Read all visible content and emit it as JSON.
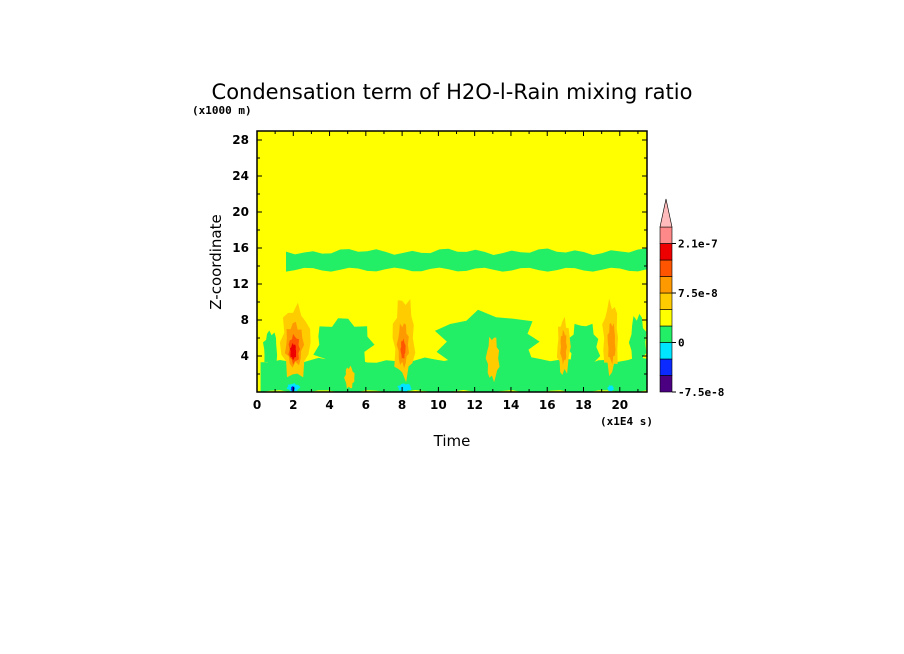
{
  "chart_data": {
    "type": "heatmap",
    "title": "Condensation term of H2O-l-Rain mixing ratio",
    "xlabel": "Time",
    "ylabel": "Z-coordinate",
    "x_unit": "(x1E4 s)",
    "y_unit": "(x1000 m)",
    "xlim": [
      0,
      21.5
    ],
    "ylim": [
      0,
      29
    ],
    "x_ticks": [
      0,
      2,
      4,
      6,
      8,
      10,
      12,
      14,
      16,
      18,
      20
    ],
    "y_ticks": [
      4,
      8,
      12,
      16,
      20,
      24,
      28
    ],
    "colorbar": {
      "levels": [
        {
          "color": "#4b0082"
        },
        {
          "color": "#0a2aff"
        },
        {
          "color": "#00e5ff"
        },
        {
          "color": "#22ee66"
        },
        {
          "color": "#ffff00"
        },
        {
          "color": "#ffcc00"
        },
        {
          "color": "#ff9900"
        },
        {
          "color": "#ff5500"
        },
        {
          "color": "#ee0000"
        },
        {
          "color": "#ff8888"
        },
        {
          "color": "#ffbbbb"
        }
      ],
      "tick_labels": [
        {
          "text": "2.1e-7",
          "value": 2.1e-07
        },
        {
          "text": "7.5e-8",
          "value": 7.5e-08
        },
        {
          "text": "0",
          "value": 0
        },
        {
          "text": "-7.5e-8",
          "value": -7.5e-08
        }
      ]
    },
    "background_value_color": "#ffff00",
    "regions": [
      {
        "kind": "band",
        "color": "#22ee66",
        "t_start": 1.6,
        "t_end": 21.5,
        "z_low": 13.6,
        "z_high": 15.6
      },
      {
        "kind": "band",
        "color": "#22ee66",
        "t_start": 0.2,
        "t_end": 21.5,
        "z_low": 0,
        "z_high": 3.5
      },
      {
        "kind": "blob",
        "color": "#22ee66",
        "t_start": 3.0,
        "t_end": 6.5,
        "z_low": 2.0,
        "z_high": 8.5
      },
      {
        "kind": "blob",
        "color": "#22ee66",
        "t_start": 9.5,
        "t_end": 16.0,
        "z_low": 2.0,
        "z_high": 9.2
      },
      {
        "kind": "blob",
        "color": "#22ee66",
        "t_start": 0.3,
        "t_end": 1.2,
        "z_low": 2.5,
        "z_high": 7.0
      },
      {
        "kind": "blob",
        "color": "#22ee66",
        "t_start": 17.0,
        "t_end": 19.0,
        "z_low": 2.0,
        "z_high": 8.0
      },
      {
        "kind": "blob",
        "color": "#22ee66",
        "t_start": 20.5,
        "t_end": 21.5,
        "z_low": 2.0,
        "z_high": 9.0
      },
      {
        "kind": "cell",
        "color": "#ffcc00",
        "t_start": 1.2,
        "t_end": 3.0,
        "z_low": 1.0,
        "z_high": 10.0
      },
      {
        "kind": "cell",
        "color": "#ff9900",
        "t_start": 1.5,
        "t_end": 2.6,
        "z_low": 2.5,
        "z_high": 8.0
      },
      {
        "kind": "cell",
        "color": "#ff5500",
        "t_start": 1.7,
        "t_end": 2.4,
        "z_low": 3.0,
        "z_high": 6.5
      },
      {
        "kind": "cell",
        "color": "#ee0000",
        "t_start": 1.8,
        "t_end": 2.2,
        "z_low": 3.5,
        "z_high": 5.5
      },
      {
        "kind": "cell",
        "color": "#ffcc00",
        "t_start": 7.4,
        "t_end": 8.8,
        "z_low": 1.0,
        "z_high": 11.0
      },
      {
        "kind": "cell",
        "color": "#ff9900",
        "t_start": 7.7,
        "t_end": 8.4,
        "z_low": 2.5,
        "z_high": 8.0
      },
      {
        "kind": "cell",
        "color": "#ff5500",
        "t_start": 7.9,
        "t_end": 8.2,
        "z_low": 3.5,
        "z_high": 6.0
      },
      {
        "kind": "cell",
        "color": "#ffcc00",
        "t_start": 16.5,
        "t_end": 17.3,
        "z_low": 1.5,
        "z_high": 8.5
      },
      {
        "kind": "cell",
        "color": "#ff9900",
        "t_start": 16.7,
        "t_end": 17.1,
        "z_low": 3.0,
        "z_high": 7.0
      },
      {
        "kind": "cell",
        "color": "#ffcc00",
        "t_start": 19.0,
        "t_end": 20.0,
        "z_low": 1.5,
        "z_high": 10.5
      },
      {
        "kind": "cell",
        "color": "#ff9900",
        "t_start": 19.3,
        "t_end": 19.8,
        "z_low": 3.0,
        "z_high": 8.0
      },
      {
        "kind": "cell",
        "color": "#ffcc00",
        "t_start": 12.6,
        "t_end": 13.4,
        "z_low": 1.0,
        "z_high": 6.5
      },
      {
        "kind": "cell",
        "color": "#ffcc00",
        "t_start": 4.8,
        "t_end": 5.4,
        "z_low": 0.2,
        "z_high": 3.0
      },
      {
        "kind": "cell",
        "color": "#00e5ff",
        "t_start": 1.6,
        "t_end": 2.4,
        "z_low": 0,
        "z_high": 1.0
      },
      {
        "kind": "cell",
        "color": "#0a2aff",
        "t_start": 1.85,
        "t_end": 2.1,
        "z_low": 0,
        "z_high": 0.7
      },
      {
        "kind": "cell",
        "color": "#4b0082",
        "t_start": 1.95,
        "t_end": 2.05,
        "z_low": 0,
        "z_high": 0.35
      },
      {
        "kind": "cell",
        "color": "#00e5ff",
        "t_start": 7.7,
        "t_end": 8.6,
        "z_low": 0,
        "z_high": 1.0
      },
      {
        "kind": "cell",
        "color": "#00e5ff",
        "t_start": 19.3,
        "t_end": 19.7,
        "z_low": 0,
        "z_high": 0.8
      }
    ]
  }
}
